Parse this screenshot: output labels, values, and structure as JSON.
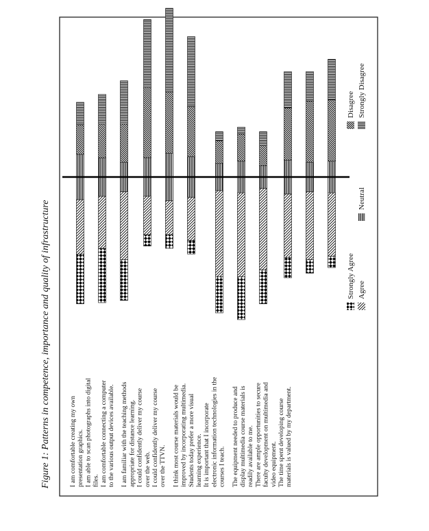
{
  "caption": "Figure 1: Patterns in competence, importance and quality of infrastructure",
  "chart_data": {
    "type": "bar",
    "stacked": true,
    "orientation": "horizontal (diverging around Neutral; figure printed rotated 90°)",
    "categories": [
      "I am comfortable creating my own presentation graphics.",
      "I am able to scan photographs into digital files.",
      "I am comfortable connecting a computer to the various output devices available.",
      "I am familiar with the teaching methods appropriate for distance learning.",
      "I could confidently deliver my course over the web.",
      "I could confidently deliver my course over the TTVN.",
      "I think most course materials would be improved by incorporating multimedia.",
      "Students today prefer a more visual learning experience.",
      "It is important that I incorporate electronic information technologies in the courses I teach.",
      "The equipment needed to produce and display multimedia course materials is readily available to me.",
      "There are ample opportunities to secure faculty development on multimedia and video equipment.",
      "The time spent developing course materials is valued by my department."
    ],
    "groups": [
      [
        0,
        1,
        2
      ],
      [
        3,
        4,
        5
      ],
      [
        6,
        7,
        8
      ],
      [
        9,
        10,
        11
      ]
    ],
    "series": [
      {
        "name": "Strongly Agree",
        "pattern": "checker",
        "values": [
          22,
          24,
          18,
          5,
          6,
          6,
          16,
          19,
          15,
          9,
          6,
          5
        ]
      },
      {
        "name": "Agree",
        "pattern": "diag-up",
        "values": [
          24,
          23,
          30,
          17,
          15,
          19,
          38,
          37,
          36,
          28,
          30,
          28
        ]
      },
      {
        "name": "Neutral",
        "pattern": "vertical",
        "values": [
          20,
          17,
          13,
          17,
          21,
          18,
          12,
          14,
          10,
          15,
          13,
          14
        ]
      },
      {
        "name": "Disagree",
        "pattern": "diag-down",
        "values": [
          13,
          15,
          17,
          31,
          27,
          22,
          10,
          12,
          9,
          23,
          27,
          27
        ]
      },
      {
        "name": "Strongly Disagree",
        "pattern": "horizontal",
        "values": [
          10,
          13,
          19,
          30,
          37,
          31,
          4,
          3,
          6,
          16,
          13,
          18
        ]
      }
    ],
    "legend": {
      "items": [
        {
          "label": "Strongly Agree",
          "pattern": "checker"
        },
        {
          "label": "Agree",
          "pattern": "diag-up"
        },
        {
          "label": "Neutral",
          "pattern": "vertical"
        },
        {
          "label": "Disagree",
          "pattern": "diag-down"
        },
        {
          "label": "Strongly Disagree",
          "pattern": "horizontal"
        }
      ],
      "position": "bottom"
    },
    "grid": false
  }
}
